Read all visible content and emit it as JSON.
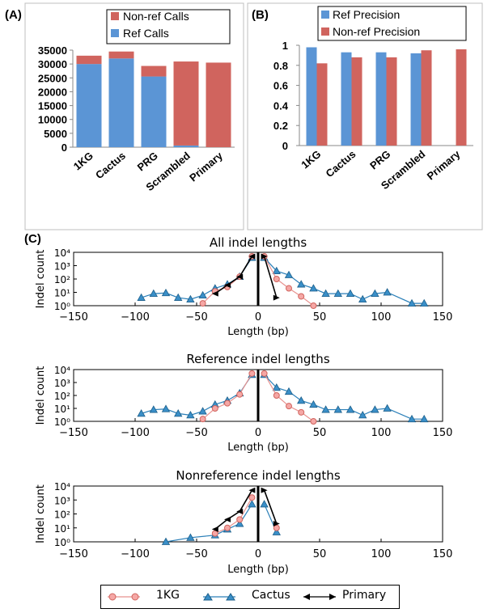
{
  "panels": {
    "a": "(A)",
    "b": "(B)",
    "c": "(C)"
  },
  "chart_data": [
    {
      "type": "bar",
      "stacked": true,
      "categories": [
        "1KG",
        "Cactus",
        "PRG",
        "Scrambled",
        "Primary"
      ],
      "series": [
        {
          "name": "Ref Calls",
          "color": "#5b95d5",
          "values": [
            30000,
            32000,
            25500,
            600,
            0
          ]
        },
        {
          "name": "Non-ref Calls",
          "color": "#d0645e",
          "values": [
            3000,
            2500,
            3800,
            30300,
            30500
          ]
        }
      ],
      "yticks": [
        "0",
        "5000",
        "10000",
        "15000",
        "20000",
        "25000",
        "30000",
        "35000"
      ],
      "ylim": [
        0,
        35000
      ],
      "legend": "top-right"
    },
    {
      "type": "bar",
      "categories": [
        "1KG",
        "Cactus",
        "PRG",
        "Scrambled",
        "Primary"
      ],
      "series": [
        {
          "name": "Ref Precision",
          "color": "#5b95d5",
          "values": [
            0.98,
            0.93,
            0.93,
            0.92,
            null
          ]
        },
        {
          "name": "Non-ref Precision",
          "color": "#d0645e",
          "values": [
            0.82,
            0.88,
            0.88,
            0.95,
            0.96
          ]
        }
      ],
      "yticks": [
        "0",
        "0.2",
        "0.4",
        "0.6",
        "0.8",
        "1"
      ],
      "ylim": [
        0,
        1
      ],
      "legend": "top"
    },
    {
      "type": "line",
      "title": "All indel lengths",
      "xlabel": "Length (bp)",
      "ylabel": "Indel count",
      "xlim": [
        -150,
        150
      ],
      "ylim_log10": [
        0,
        4
      ],
      "xticks": [
        "−150",
        "−100",
        "−50",
        "0",
        "50",
        "100",
        "150"
      ],
      "yticks": [
        "10⁰",
        "10¹",
        "10²",
        "10³",
        "10⁴"
      ],
      "series": [
        {
          "name": "1KG",
          "x": [
            -45,
            -35,
            -25,
            -15,
            -5,
            5,
            15,
            25,
            35,
            45
          ],
          "y": [
            1.5,
            12,
            25,
            150,
            5000,
            5000,
            100,
            20,
            5,
            1
          ]
        },
        {
          "name": "Cactus",
          "x": [
            -95,
            -85,
            -75,
            -65,
            -55,
            -45,
            -35,
            -25,
            -15,
            -5,
            5,
            15,
            25,
            35,
            45,
            55,
            65,
            75,
            85,
            95,
            105,
            125,
            135
          ],
          "y": [
            4,
            8,
            9,
            4,
            3,
            6,
            20,
            40,
            150,
            4000,
            4000,
            400,
            200,
            40,
            20,
            8,
            8,
            8,
            3,
            8,
            10,
            1.5,
            1.5
          ]
        },
        {
          "name": "Primary",
          "x": [
            -35,
            -25,
            -15,
            -5,
            5,
            15
          ],
          "y": [
            8,
            35,
            150,
            5000,
            5000,
            4
          ]
        }
      ]
    },
    {
      "type": "line",
      "title": "Reference indel lengths",
      "xlabel": "Length (bp)",
      "ylabel": "Indel count",
      "xlim": [
        -150,
        150
      ],
      "ylim_log10": [
        0,
        4
      ],
      "xticks": [
        "−150",
        "−100",
        "−50",
        "0",
        "50",
        "100",
        "150"
      ],
      "yticks": [
        "10⁰",
        "10¹",
        "10²",
        "10³",
        "10⁴"
      ],
      "series": [
        {
          "name": "1KG",
          "x": [
            -45,
            -35,
            -25,
            -15,
            -5,
            5,
            15,
            25,
            35,
            45
          ],
          "y": [
            1.5,
            10,
            25,
            120,
            5000,
            5000,
            100,
            15,
            5,
            1
          ]
        },
        {
          "name": "Cactus",
          "x": [
            -95,
            -85,
            -75,
            -65,
            -55,
            -45,
            -35,
            -25,
            -15,
            -5,
            5,
            15,
            25,
            35,
            45,
            55,
            65,
            75,
            85,
            95,
            105,
            125,
            135
          ],
          "y": [
            4,
            8,
            9,
            4,
            3,
            6,
            20,
            40,
            150,
            4000,
            4000,
            400,
            200,
            40,
            20,
            8,
            8,
            8,
            3,
            8,
            10,
            1.5,
            1.5
          ]
        }
      ]
    },
    {
      "type": "line",
      "title": "Nonreference indel lengths",
      "xlabel": "Length (bp)",
      "ylabel": "Indel count",
      "xlim": [
        -150,
        150
      ],
      "ylim_log10": [
        0,
        4
      ],
      "xticks": [
        "−150",
        "−100",
        "−50",
        "0",
        "50",
        "100",
        "150"
      ],
      "yticks": [
        "10⁰",
        "10¹",
        "10²",
        "10³",
        "10⁴"
      ],
      "series": [
        {
          "name": "1KG",
          "x": [
            -35,
            -25,
            -15,
            -5,
            15
          ],
          "y": [
            4,
            10,
            40,
            1500,
            10
          ]
        },
        {
          "name": "Cactus",
          "x": [
            -75,
            -55,
            -35,
            -25,
            -15,
            -5,
            5,
            15
          ],
          "y": [
            1,
            2,
            3,
            8,
            20,
            500,
            500,
            5
          ]
        },
        {
          "name": "Primary",
          "x": [
            -35,
            -25,
            -15,
            -5,
            5,
            15
          ],
          "y": [
            8,
            40,
            150,
            5000,
            5000,
            20
          ]
        }
      ]
    }
  ],
  "legend_bottom": [
    "1KG",
    "Cactus",
    "Primary"
  ]
}
